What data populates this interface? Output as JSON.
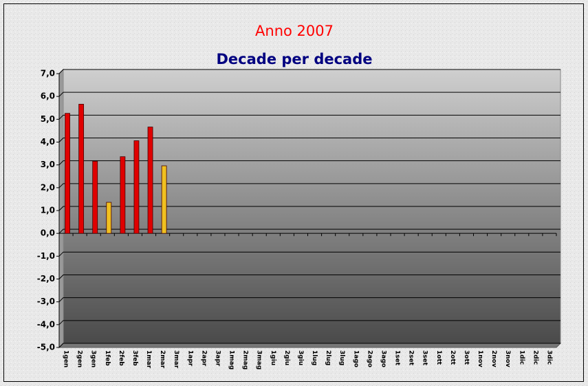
{
  "chart_data": {
    "type": "bar",
    "title": "Anno 2007",
    "subtitle": "Decade per decade",
    "categories": [
      "1gen",
      "2gen",
      "3gen",
      "1feb",
      "2feb",
      "3feb",
      "1mar",
      "2mar",
      "3mar",
      "1apr",
      "2apr",
      "3apr",
      "1mag",
      "2mag",
      "3mag",
      "1giu",
      "2giu",
      "3giu",
      "1lug",
      "2lug",
      "3lug",
      "1ago",
      "2ago",
      "3ago",
      "1set",
      "2set",
      "3set",
      "1ott",
      "2ott",
      "3ott",
      "1nov",
      "2nov",
      "3nov",
      "1dic",
      "2dic",
      "3dic"
    ],
    "values": [
      5.2,
      5.6,
      3.1,
      1.3,
      3.3,
      4.0,
      4.6,
      2.9,
      null,
      null,
      null,
      null,
      null,
      null,
      null,
      null,
      null,
      null,
      null,
      null,
      null,
      null,
      null,
      null,
      null,
      null,
      null,
      null,
      null,
      null,
      null,
      null,
      null,
      null,
      null,
      null
    ],
    "colors": [
      "#e00000",
      "#e00000",
      "#e00000",
      "#f0c020",
      "#e00000",
      "#e00000",
      "#e00000",
      "#f0c020",
      null,
      null,
      null,
      null,
      null,
      null,
      null,
      null,
      null,
      null,
      null,
      null,
      null,
      null,
      null,
      null,
      null,
      null,
      null,
      null,
      null,
      null,
      null,
      null,
      null,
      null,
      null,
      null
    ],
    "ylim": [
      -5,
      7
    ],
    "yticks": [
      {
        "value": -5,
        "label": "-5,0"
      },
      {
        "value": -4,
        "label": "-4,0"
      },
      {
        "value": -3,
        "label": "-3,0"
      },
      {
        "value": -2,
        "label": "-2,0"
      },
      {
        "value": -1,
        "label": "-1,0"
      },
      {
        "value": 0,
        "label": "0,0"
      },
      {
        "value": 1,
        "label": "1,0"
      },
      {
        "value": 2,
        "label": "2,0"
      },
      {
        "value": 3,
        "label": "3,0"
      },
      {
        "value": 4,
        "label": "4,0"
      },
      {
        "value": 5,
        "label": "5,0"
      },
      {
        "value": 6,
        "label": "6,0"
      },
      {
        "value": 7,
        "label": "7,0"
      }
    ],
    "grid": true
  }
}
